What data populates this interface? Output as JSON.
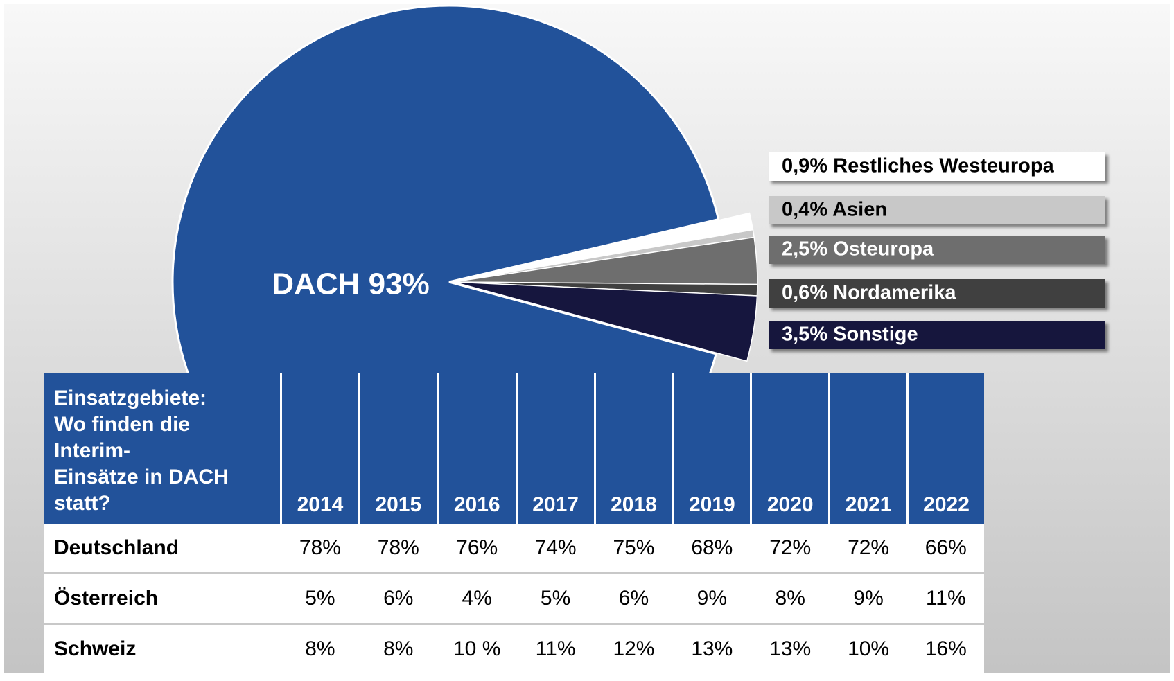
{
  "chart_data": {
    "type": "pie",
    "values": [
      93,
      0.9,
      0.4,
      2.5,
      0.6,
      3.5
    ],
    "value_labels": [
      "DACH 93%",
      "0,9% Restliches Westeuropa",
      "0,4% Asien",
      "2,5% Osteuropa",
      "0,6% Nordamerika",
      "3,5% Sonstige"
    ],
    "colors": [
      "#22529a",
      "#ffffff",
      "#c8c8c8",
      "#6e6e6e",
      "#404040",
      "#16163e"
    ]
  },
  "table": {
    "header_lines": [
      "Einsatzgebiete:",
      "Wo finden die",
      "Interim-",
      "Einsätze in DACH",
      "statt?"
    ],
    "columns": [
      "2014",
      "2015",
      "2016",
      "2017",
      "2018",
      "2019",
      "2020",
      "2021",
      "2022"
    ],
    "rows": [
      [
        "Deutschland",
        "78%",
        "78%",
        "76%",
        "74%",
        "75%",
        "68%",
        "72%",
        "72%",
        "66%"
      ],
      [
        "Österreich",
        "5%",
        "6%",
        "4%",
        "5%",
        "6%",
        "9%",
        "8%",
        "9%",
        "11%"
      ],
      [
        "Schweiz",
        "8%",
        "8%",
        "10 %",
        "11%",
        "12%",
        "13%",
        "13%",
        "10%",
        "16%"
      ]
    ]
  }
}
